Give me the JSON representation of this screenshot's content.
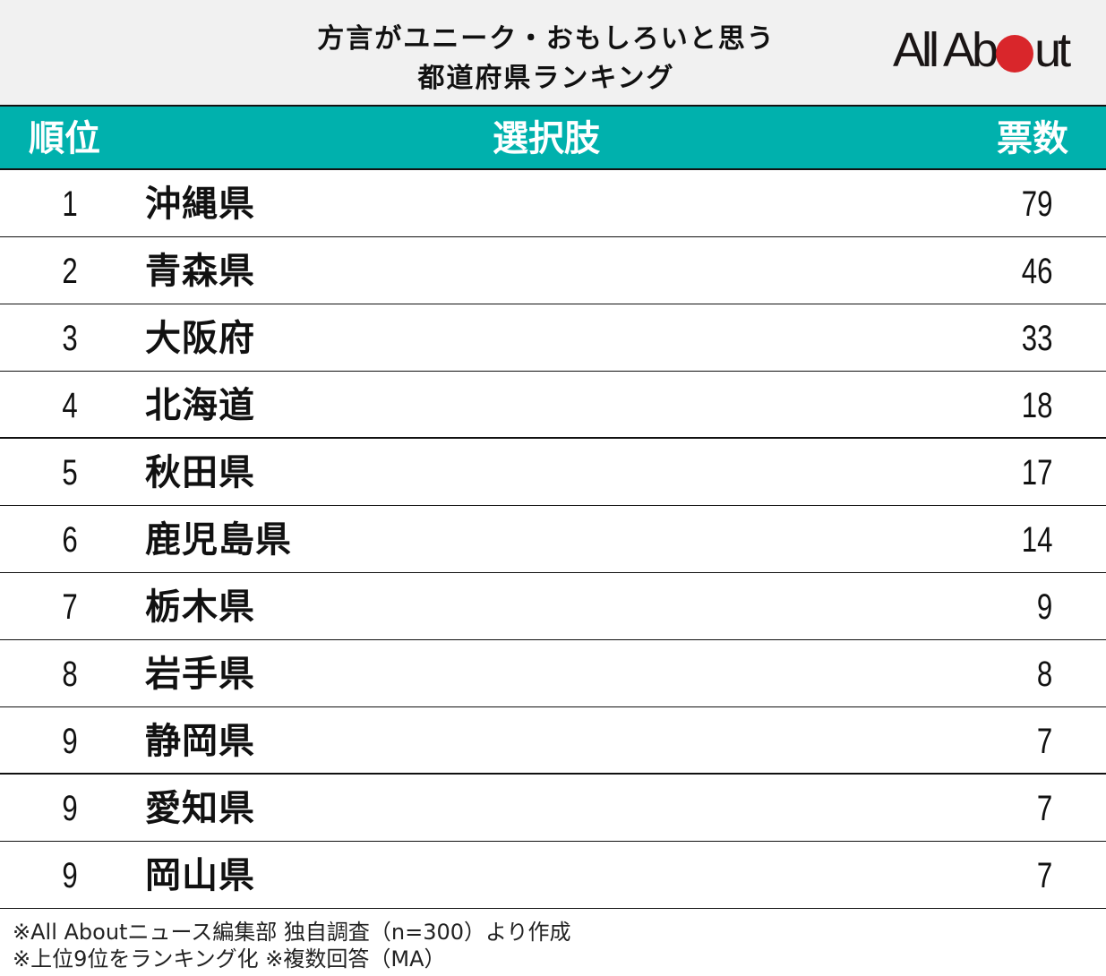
{
  "header": {
    "title_line1": "方言がユニーク・おもしろいと思う",
    "title_line2": "都道府県ランキング",
    "logo": {
      "text_before": "All Ab",
      "text_after": "ut",
      "dot_color": "#d9262b"
    }
  },
  "table": {
    "columns": {
      "rank": "順位",
      "choice": "選択肢",
      "votes": "票数"
    },
    "header_color": "#00b1ad",
    "rows": [
      {
        "rank": "1",
        "name": "沖縄県",
        "votes": "79"
      },
      {
        "rank": "2",
        "name": "青森県",
        "votes": "46"
      },
      {
        "rank": "3",
        "name": "大阪府",
        "votes": "33"
      },
      {
        "rank": "4",
        "name": "北海道",
        "votes": "18"
      },
      {
        "rank": "5",
        "name": "秋田県",
        "votes": "17"
      },
      {
        "rank": "6",
        "name": "鹿児島県",
        "votes": "14"
      },
      {
        "rank": "7",
        "name": "栃木県",
        "votes": "9"
      },
      {
        "rank": "8",
        "name": "岩手県",
        "votes": "8"
      },
      {
        "rank": "9",
        "name": "静岡県",
        "votes": "7"
      },
      {
        "rank": "9",
        "name": "愛知県",
        "votes": "7"
      },
      {
        "rank": "9",
        "name": "岡山県",
        "votes": "7"
      }
    ]
  },
  "notes": {
    "line1": "※All Aboutニュース編集部 独自調査（n=300）より作成",
    "line2": "※上位9位をランキング化 ※複数回答（MA）"
  },
  "chart_data": {
    "type": "table",
    "title": "方言がユニーク・おもしろいと思う都道府県ランキング",
    "columns": [
      "順位",
      "選択肢",
      "票数"
    ],
    "categories": [
      "沖縄県",
      "青森県",
      "大阪府",
      "北海道",
      "秋田県",
      "鹿児島県",
      "栃木県",
      "岩手県",
      "静岡県",
      "愛知県",
      "岡山県"
    ],
    "ranks": [
      1,
      2,
      3,
      4,
      5,
      6,
      7,
      8,
      9,
      9,
      9
    ],
    "values": [
      79,
      46,
      33,
      18,
      17,
      14,
      9,
      8,
      7,
      7,
      7
    ],
    "annotations": [
      "※All Aboutニュース編集部 独自調査（n=300）より作成",
      "※上位9位をランキング化 ※複数回答（MA）"
    ]
  }
}
